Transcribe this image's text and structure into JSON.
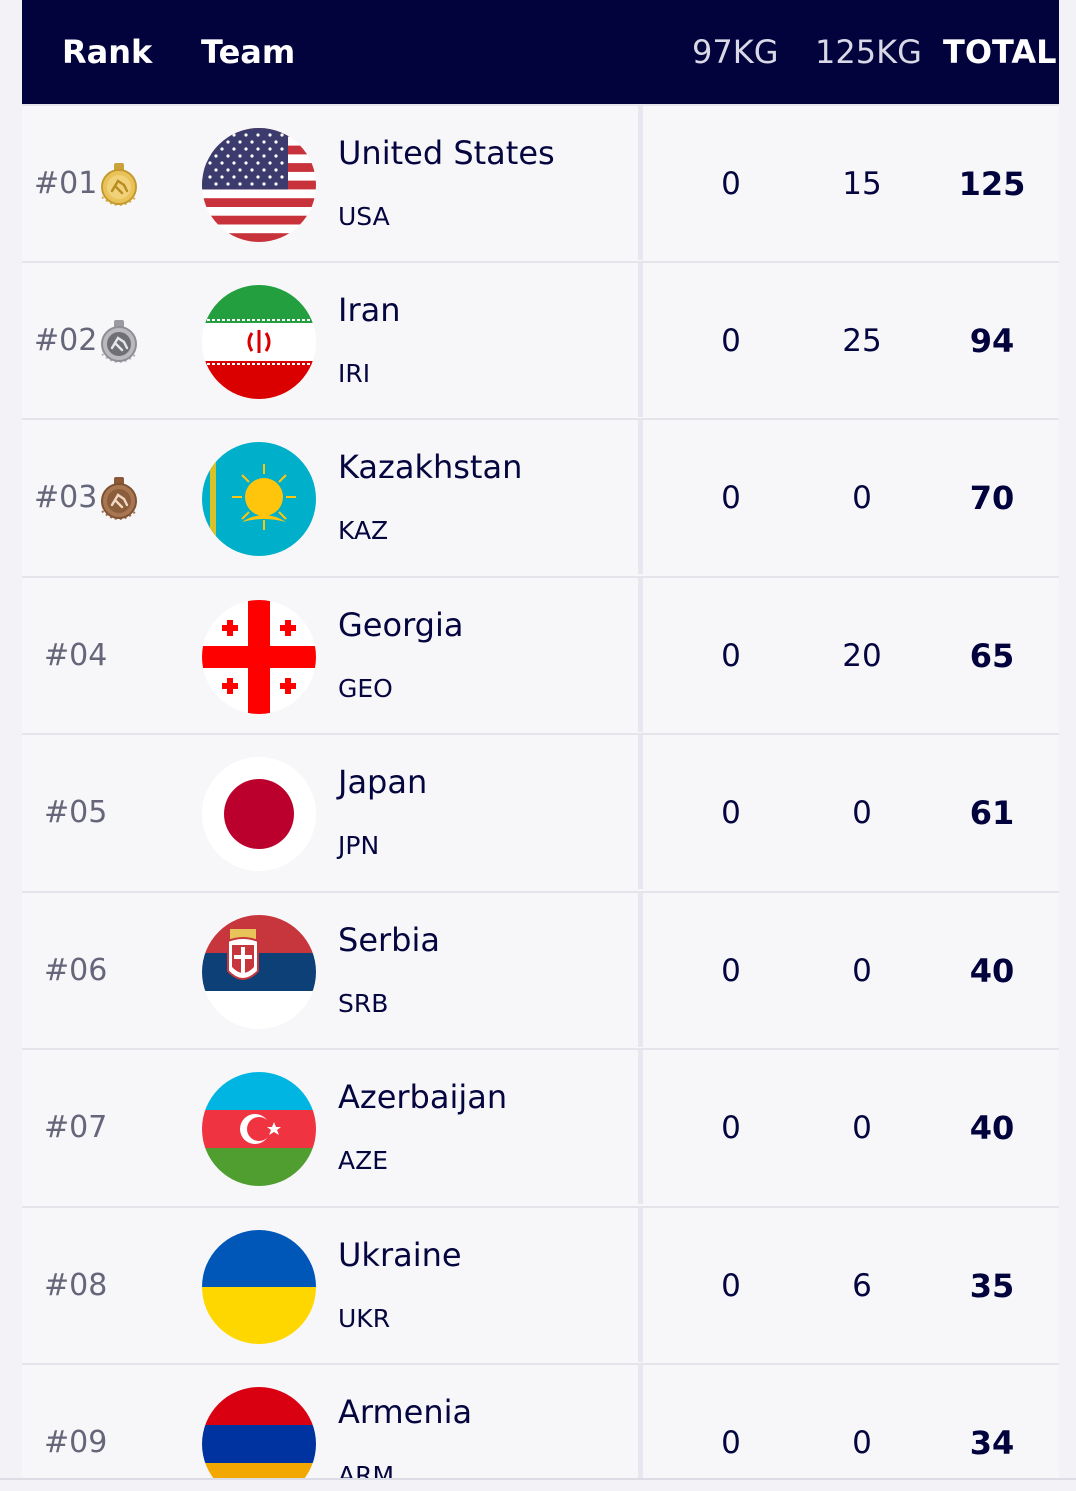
{
  "header": {
    "rank": "Rank",
    "team": "Team",
    "col_97": "97KG",
    "col_125": "125KG",
    "total": "TOTAL"
  },
  "rows": [
    {
      "rank": "#01",
      "medal": "gold-medal-icon",
      "flag": "usa-flag-icon",
      "name": "United States",
      "code": "USA",
      "kg97": "0",
      "kg125": "15",
      "total": "125"
    },
    {
      "rank": "#02",
      "medal": "silver-medal-icon",
      "flag": "iran-flag-icon",
      "name": "Iran",
      "code": "IRI",
      "kg97": "0",
      "kg125": "25",
      "total": "94"
    },
    {
      "rank": "#03",
      "medal": "bronze-medal-icon",
      "flag": "kazakhstan-flag-icon",
      "name": "Kazakhstan",
      "code": "KAZ",
      "kg97": "0",
      "kg125": "0",
      "total": "70"
    },
    {
      "rank": "#04",
      "flag": "georgia-flag-icon",
      "name": "Georgia",
      "code": "GEO",
      "kg97": "0",
      "kg125": "20",
      "total": "65"
    },
    {
      "rank": "#05",
      "flag": "japan-flag-icon",
      "name": "Japan",
      "code": "JPN",
      "kg97": "0",
      "kg125": "0",
      "total": "61"
    },
    {
      "rank": "#06",
      "flag": "serbia-flag-icon",
      "name": "Serbia",
      "code": "SRB",
      "kg97": "0",
      "kg125": "0",
      "total": "40"
    },
    {
      "rank": "#07",
      "flag": "azerbaijan-flag-icon",
      "name": "Azerbaijan",
      "code": "AZE",
      "kg97": "0",
      "kg125": "0",
      "total": "40"
    },
    {
      "rank": "#08",
      "flag": "ukraine-flag-icon",
      "name": "Ukraine",
      "code": "UKR",
      "kg97": "0",
      "kg125": "6",
      "total": "35"
    },
    {
      "rank": "#09",
      "flag": "armenia-flag-icon",
      "name": "Armenia",
      "code": "ARM",
      "kg97": "0",
      "kg125": "0",
      "total": "34"
    }
  ],
  "colors": {
    "header_bg": "#02023d",
    "text_primary": "#05053f",
    "rank_text": "#66667a",
    "gold": "#d9b24a",
    "silver": "#a9a9ad",
    "bronze": "#a0704c"
  }
}
